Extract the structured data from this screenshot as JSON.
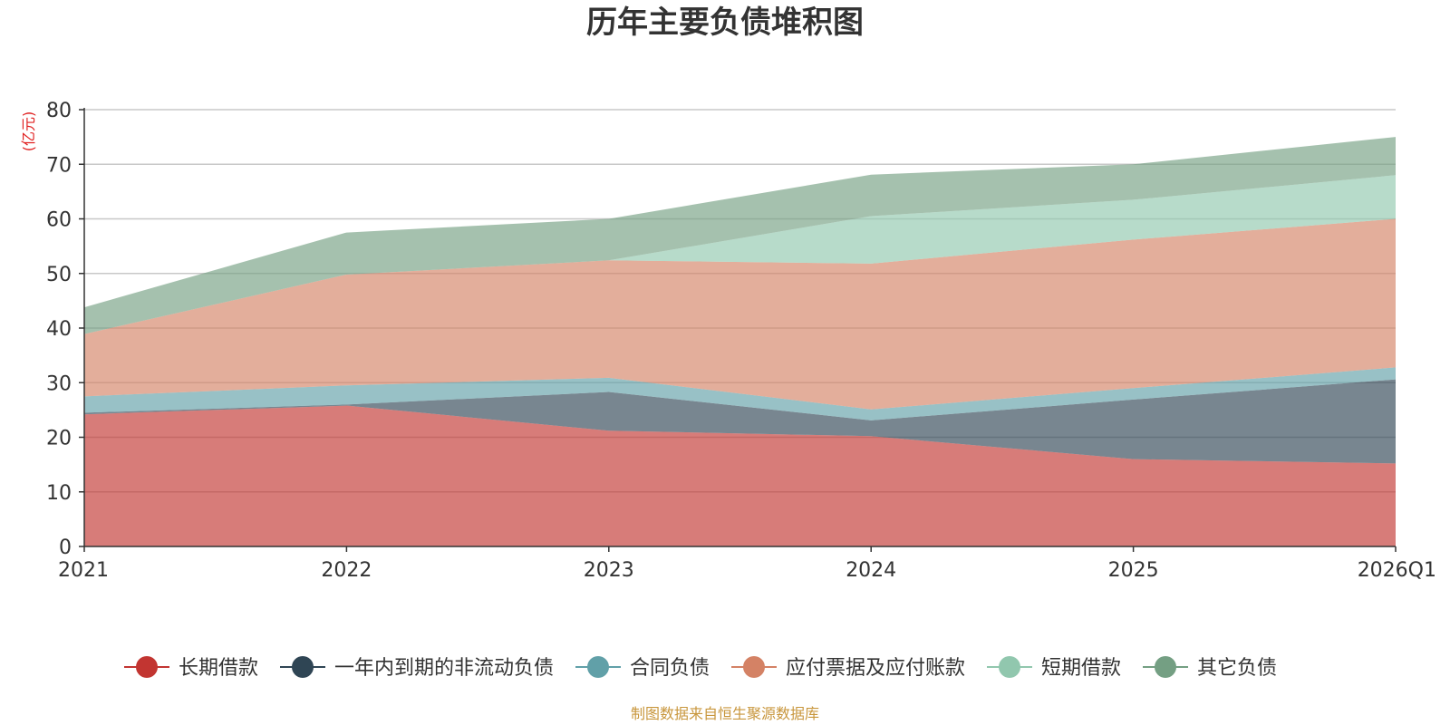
{
  "chart_data": {
    "type": "area",
    "stacked": true,
    "title": "历年主要负债堆积图",
    "ylabel": "(亿元)",
    "xlabel": "",
    "ylim": [
      0,
      80
    ],
    "yticks": [
      0,
      10,
      20,
      30,
      40,
      50,
      60,
      70,
      80
    ],
    "categories": [
      "2021",
      "2022",
      "2023",
      "2024",
      "2025",
      "2026Q1"
    ],
    "series": [
      {
        "name": "长期借款",
        "color": "#c23531",
        "values": [
          24.2,
          25.8,
          21.2,
          20.2,
          16.0,
          15.2
        ]
      },
      {
        "name": "一年内到期的非流动负债",
        "color": "#2f4554",
        "values": [
          0.3,
          0.2,
          7.1,
          2.9,
          10.9,
          15.4
        ]
      },
      {
        "name": "合同负债",
        "color": "#61a0a8",
        "values": [
          3.0,
          3.5,
          2.6,
          2.0,
          2.1,
          2.2
        ]
      },
      {
        "name": "应付票据及应付账款",
        "color": "#d48265",
        "values": [
          11.4,
          20.3,
          21.5,
          26.7,
          27.2,
          27.2
        ]
      },
      {
        "name": "短期借款",
        "color": "#91c7ae",
        "values": [
          0.0,
          0.0,
          0.0,
          8.7,
          7.3,
          8.0
        ]
      },
      {
        "name": "其它负债",
        "color": "#749f83",
        "values": [
          4.9,
          7.7,
          7.6,
          7.6,
          6.5,
          7.0
        ]
      }
    ]
  },
  "footer": "制图数据来自恒生聚源数据库"
}
